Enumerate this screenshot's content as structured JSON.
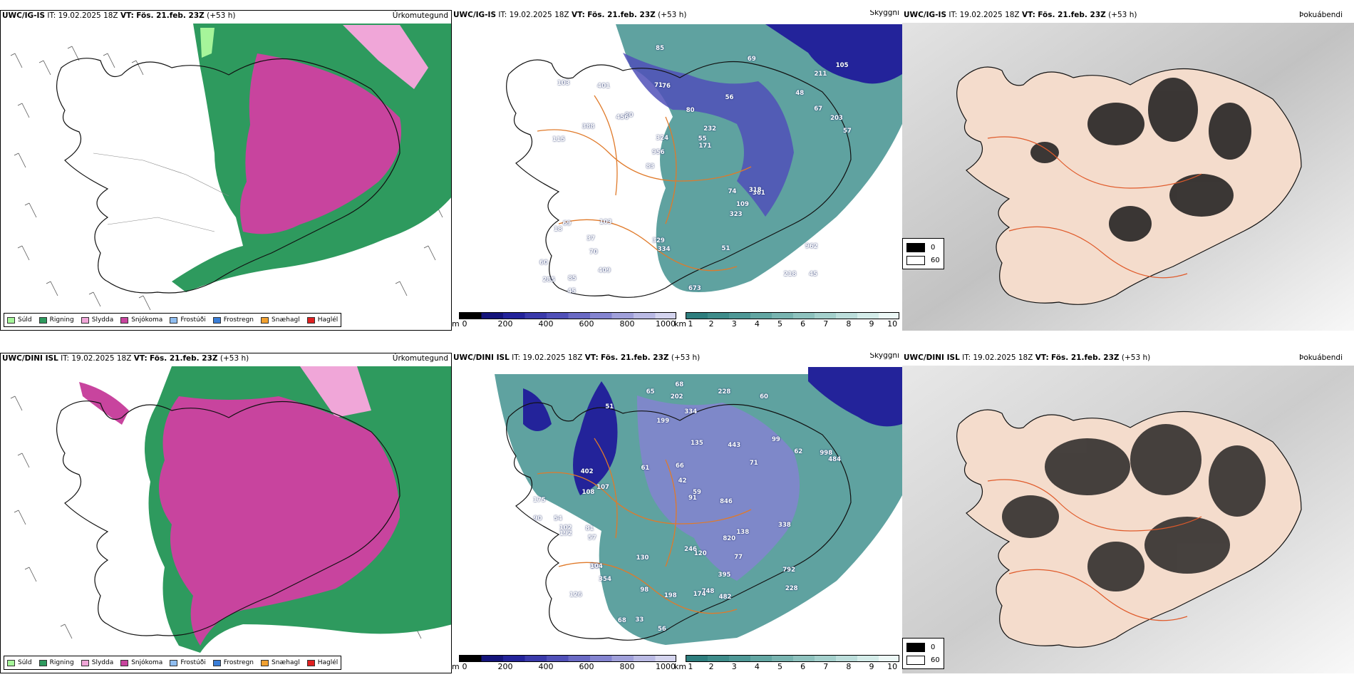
{
  "rows": [
    {
      "precip_panel": {
        "model": "UWC/IG-IS",
        "it_label": "IT:",
        "it_value": "19.02.2025 18Z",
        "vt_label": "VT:",
        "vt_value": "Fös. 21.feb. 23Z",
        "lead": "(+53 h)",
        "tag": "Úrkomutegund"
      },
      "vis_panel": {
        "model": "UWC/IG-IS",
        "it_label": "IT:",
        "it_value": "19.02.2025 18Z",
        "vt_label": "VT:",
        "vt_value": "Fös. 21.feb. 23Z",
        "lead": "(+53 h)",
        "tag": "Skyggni",
        "ceiling_labels": [
          "45",
          "115",
          "211",
          "83",
          "56",
          "85",
          "71",
          "80",
          "69",
          "80",
          "60",
          "70",
          "76",
          "232",
          "361",
          "103",
          "85",
          "57",
          "74",
          "67",
          "956",
          "329",
          "324",
          "401",
          "69",
          "103",
          "218",
          "962",
          "318",
          "673",
          "456",
          "388",
          "323",
          "409",
          "203",
          "55",
          "285",
          "334",
          "171",
          "18",
          "48",
          "105",
          "109",
          "51",
          "37",
          "45"
        ]
      },
      "fog_panel": {
        "model": "UWC/IG-IS",
        "it_label": "IT:",
        "it_value": "19.02.2025 18Z",
        "vt_label": "VT:",
        "vt_value": "Fös. 21.feb. 23Z",
        "lead": "(+53 h)",
        "tag": "Þokuábendi"
      }
    },
    {
      "precip_panel": {
        "model": "UWC/DINI ISL",
        "it_label": "IT:",
        "it_value": "19.02.2025 18Z",
        "vt_label": "VT:",
        "vt_value": "Fös. 21.feb. 23Z",
        "lead": "(+53 h)",
        "tag": "Úrkomutegund"
      },
      "vis_panel": {
        "model": "UWC/DINI ISL",
        "it_label": "IT:",
        "it_value": "19.02.2025 18Z",
        "vt_label": "VT:",
        "vt_value": "Fös. 21.feb. 23Z",
        "lead": "(+53 h)",
        "tag": "Skyggni",
        "ceiling_labels": [
          "126",
          "60",
          "51",
          "99",
          "120",
          "107",
          "57",
          "54",
          "62",
          "71",
          "54",
          "68",
          "77",
          "91",
          "56",
          "65",
          "228",
          "175",
          "104",
          "33",
          "482",
          "202",
          "199",
          "59",
          "42",
          "98",
          "102",
          "228",
          "135",
          "138",
          "402",
          "354",
          "748",
          "246",
          "792",
          "192",
          "998",
          "846",
          "443",
          "338",
          "484",
          "334",
          "198",
          "81",
          "90",
          "108",
          "820",
          "174",
          "130",
          "395",
          "61",
          "68",
          "66"
        ]
      },
      "fog_panel": {
        "model": "UWC/DINI ISL",
        "it_label": "IT:",
        "it_value": "19.02.2025 18Z",
        "vt_label": "VT:",
        "vt_value": "Fös. 21.feb. 23Z",
        "lead": "(+53 h)",
        "tag": "Þokuábendi"
      }
    }
  ],
  "precip_legend": [
    {
      "label": "Súld",
      "color": "#a6f59a"
    },
    {
      "label": "Rigning",
      "color": "#2e9a5e"
    },
    {
      "label": "Slydda",
      "color": "#f0a6d8"
    },
    {
      "label": "Snjókoma",
      "color": "#c8449e"
    },
    {
      "label": "Frostúði",
      "color": "#8fbdf0"
    },
    {
      "label": "Frostregn",
      "color": "#3a7ed8"
    },
    {
      "label": "Snæhagl",
      "color": "#f0a030"
    },
    {
      "label": "Haglél",
      "color": "#e02020"
    }
  ],
  "ceiling_bar": {
    "unit": "m",
    "ticks": [
      "0",
      "200",
      "400",
      "600",
      "800",
      "1000"
    ],
    "colors": [
      "#000000",
      "#14147a",
      "#23239a",
      "#3a3aaa",
      "#5050b8",
      "#6a6ac4",
      "#8484d0",
      "#a0a0da",
      "#babae4",
      "#d4d4ee"
    ]
  },
  "visibility_bar": {
    "unit": "km",
    "ticks": [
      "1",
      "2",
      "3",
      "4",
      "5",
      "6",
      "7",
      "8",
      "9",
      "10"
    ],
    "colors": [
      "#2e7e7e",
      "#3e8c8a",
      "#4e9896",
      "#62a6a2",
      "#78b4b0",
      "#8ec2be",
      "#a4d0cc",
      "#bcdedb",
      "#d4ece9",
      "#ecf8f6"
    ]
  },
  "fog_legend": [
    {
      "label": "0",
      "color": "#000000"
    },
    {
      "label": "60",
      "color": "#ffffff"
    }
  ],
  "colors": {
    "iceland_outline": "#111111",
    "roads": "#e07a2a",
    "rivers": "#7a8fe0",
    "fog_land": "#f4dccc"
  }
}
